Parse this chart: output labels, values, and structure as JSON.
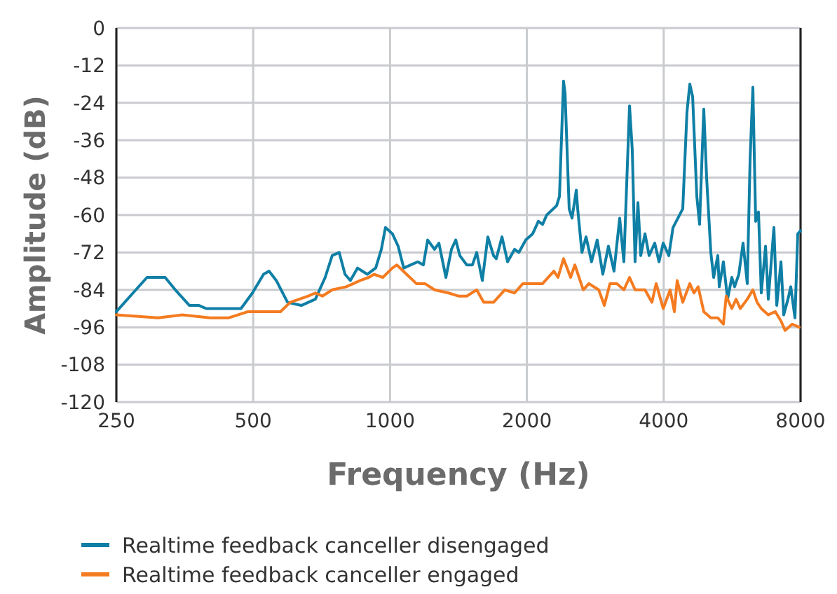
{
  "chart_data": {
    "type": "line",
    "xlabel": "Frequency (Hz)",
    "ylabel": "Amplitude (dB)",
    "log": "x",
    "xlim": [
      250,
      8000
    ],
    "xticks": [
      250,
      500,
      1000,
      2000,
      4000,
      8000
    ],
    "ylim": [
      -120,
      0
    ],
    "yticks": [
      0,
      -12,
      -24,
      -36,
      -48,
      -60,
      -72,
      -84,
      -96,
      -108,
      -120
    ],
    "grid": true,
    "legend": "bottom",
    "series": [
      {
        "name": "Realtime feedback canceller disengaged",
        "color": "#0f7fa5",
        "x": [
          250,
          272,
          292,
          307,
          320,
          337,
          362,
          380,
          394,
          417,
          448,
          470,
          498,
          527,
          542,
          562,
          595,
          638,
          685,
          720,
          746,
          773,
          796,
          818,
          848,
          891,
          930,
          957,
          977,
          1012,
          1042,
          1072,
          1111,
          1151,
          1184,
          1210,
          1253,
          1281,
          1327,
          1365,
          1395,
          1424,
          1475,
          1518,
          1551,
          1596,
          1641,
          1689,
          1713,
          1763,
          1814,
          1879,
          1920,
          1989,
          2060,
          2120,
          2166,
          2211,
          2325,
          2359,
          2408,
          2427,
          2478,
          2514,
          2569,
          2587,
          2643,
          2699,
          2775,
          2856,
          2938,
          3023,
          3110,
          3200,
          3269,
          3364,
          3411,
          3460,
          3510,
          3561,
          3638,
          3715,
          3822,
          3906,
          3990,
          4105,
          4193,
          4405,
          4500,
          4565,
          4631,
          4730,
          4797,
          4900,
          4971,
          5078,
          5151,
          5261,
          5300,
          5412,
          5528,
          5648,
          5728,
          5852,
          5979,
          6108,
          6196,
          6284,
          6374,
          6465,
          6557,
          6700,
          6795,
          6990,
          7092,
          7245,
          7346,
          7507,
          7613,
          7776,
          7889,
          8000
        ],
        "values": [
          -91,
          -85,
          -80,
          -80,
          -80,
          -84,
          -89,
          -89,
          -90,
          -90,
          -90,
          -90,
          -85,
          -79,
          -78,
          -81,
          -88,
          -89,
          -87,
          -80,
          -73,
          -72,
          -79,
          -81,
          -77,
          -79,
          -77,
          -71,
          -64,
          -66,
          -70,
          -77,
          -76,
          -75,
          -76,
          -68,
          -71,
          -69,
          -80,
          -71,
          -68,
          -73,
          -76,
          -76,
          -72,
          -81,
          -67,
          -73,
          -74,
          -67,
          -75,
          -71,
          -72,
          -68,
          -66,
          -62,
          -63,
          -60,
          -57,
          -54,
          -17,
          -21,
          -58,
          -61,
          -52,
          -58,
          -72,
          -67,
          -75,
          -68,
          -79,
          -70,
          -78,
          -61,
          -75,
          -25,
          -39,
          -75,
          -56,
          -73,
          -66,
          -73,
          -69,
          -75,
          -69,
          -73,
          -64,
          -58,
          -27,
          -18,
          -22,
          -54,
          -63,
          -26,
          -48,
          -72,
          -80,
          -73,
          -83,
          -75,
          -87,
          -80,
          -83,
          -79,
          -69,
          -82,
          -42,
          -19,
          -62,
          -59,
          -85,
          -70,
          -87,
          -64,
          -89,
          -75,
          -92,
          -87,
          -83,
          -93,
          -66,
          -65
        ]
      },
      {
        "name": "Realtime feedback canceller engaged",
        "color": "#f47b20",
        "x": [
          250,
          309,
          349,
          402,
          441,
          487,
          523,
          574,
          603,
          661,
          685,
          710,
          746,
          801,
          860,
          898,
          923,
          964,
          1012,
          1035,
          1087,
          1143,
          1193,
          1253,
          1345,
          1414,
          1475,
          1551,
          1607,
          1689,
          1788,
          1879,
          1960,
          2060,
          2166,
          2293,
          2342,
          2408,
          2496,
          2550,
          2661,
          2738,
          2878,
          2961,
          3046,
          3156,
          3269,
          3364,
          3460,
          3638,
          3768,
          3850,
          3990,
          4133,
          4222,
          4282,
          4405,
          4565,
          4663,
          4763,
          4900,
          5078,
          5261,
          5412,
          5490,
          5648,
          5771,
          5895,
          6108,
          6284,
          6419,
          6557,
          6795,
          7042,
          7245,
          7397,
          7668,
          7945
        ],
        "values": [
          -92,
          -93,
          -92,
          -93,
          -93,
          -91,
          -91,
          -91,
          -88,
          -86,
          -85,
          -86,
          -84,
          -83,
          -81,
          -80,
          -79,
          -80,
          -77,
          -76,
          -79,
          -82,
          -82,
          -84,
          -85,
          -86,
          -86,
          -84,
          -88,
          -88,
          -84,
          -85,
          -82,
          -82,
          -82,
          -78,
          -80,
          -74,
          -80,
          -76,
          -84,
          -82,
          -84,
          -89,
          -82,
          -82,
          -84,
          -80,
          -84,
          -84,
          -88,
          -82,
          -90,
          -84,
          -91,
          -81,
          -88,
          -82,
          -85,
          -83,
          -91,
          -93,
          -93,
          -95,
          -86,
          -90,
          -87,
          -90,
          -87,
          -84,
          -88,
          -90,
          -92,
          -91,
          -94,
          -97,
          -95,
          -96
        ]
      }
    ]
  }
}
